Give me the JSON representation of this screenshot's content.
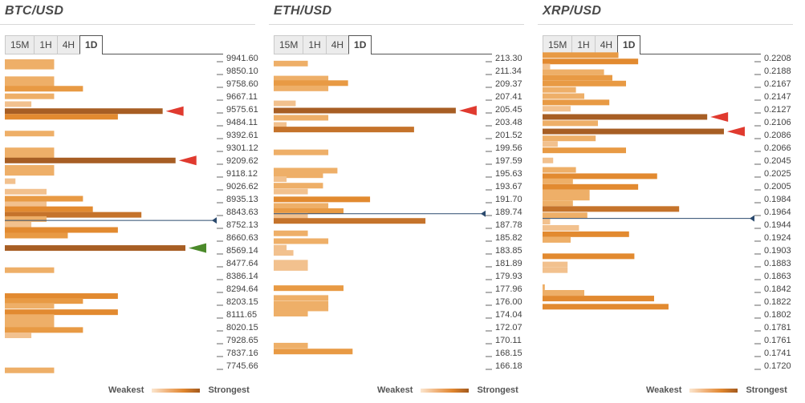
{
  "tabs": [
    "15M",
    "1H",
    "4H",
    "1D"
  ],
  "active_tab": "1D",
  "legend": {
    "weakest": "Weakest",
    "strongest": "Strongest"
  },
  "colors": {
    "level1": "#f8dcbb",
    "level2": "#f2c18e",
    "level3": "#eeaf68",
    "level4": "#e89a44",
    "level5": "#e28a30",
    "level6": "#c5732b",
    "level7": "#a75e24",
    "arrow_red": "#e03a2f",
    "arrow_green": "#4b8a2a",
    "current_price_line": "#2b4a6e"
  },
  "panels": [
    {
      "title": "BTC/USD",
      "chart_data": {
        "type": "bar",
        "orientation": "horizontal",
        "price_levels": [
          "9941.60",
          "9850.10",
          "9758.60",
          "9667.11",
          "9575.61",
          "9484.11",
          "9392.61",
          "9301.12",
          "9209.62",
          "9118.12",
          "9026.62",
          "8935.13",
          "8843.63",
          "8752.13",
          "8660.63",
          "8569.14",
          "8477.64",
          "8386.14",
          "8294.64",
          "8203.15",
          "8111.65",
          "8020.15",
          "7928.65",
          "7837.16",
          "7745.66"
        ],
        "price_range": [
          7745.66,
          9941.6
        ],
        "bar_scale_max": 275,
        "bars": [
          {
            "price": 9910,
            "value": 65,
            "level": 3
          },
          {
            "price": 9878,
            "value": 65,
            "level": 3
          },
          {
            "price": 9788,
            "value": 65,
            "level": 3
          },
          {
            "price": 9756,
            "value": 65,
            "level": 3
          },
          {
            "price": 9720,
            "value": 103,
            "level": 4
          },
          {
            "price": 9666,
            "value": 65,
            "level": 3
          },
          {
            "price": 9610,
            "value": 35,
            "level": 2
          },
          {
            "price": 9560,
            "value": 208,
            "level": 7
          },
          {
            "price": 9520,
            "value": 149,
            "level": 5
          },
          {
            "price": 9400,
            "value": 65,
            "level": 3
          },
          {
            "price": 9280,
            "value": 65,
            "level": 3
          },
          {
            "price": 9245,
            "value": 65,
            "level": 3
          },
          {
            "price": 9208,
            "value": 225,
            "level": 7
          },
          {
            "price": 9155,
            "value": 65,
            "level": 3
          },
          {
            "price": 9120,
            "value": 65,
            "level": 3
          },
          {
            "price": 9060,
            "value": 14,
            "level": 2
          },
          {
            "price": 8985,
            "value": 55,
            "level": 2
          },
          {
            "price": 8935,
            "value": 103,
            "level": 4
          },
          {
            "price": 8895,
            "value": 55,
            "level": 2
          },
          {
            "price": 8860,
            "value": 116,
            "level": 5
          },
          {
            "price": 8820,
            "value": 180,
            "level": 6
          },
          {
            "price": 8790,
            "value": 55,
            "level": 3
          },
          {
            "price": 8752,
            "value": 35,
            "level": 2
          },
          {
            "price": 8712,
            "value": 149,
            "level": 5
          },
          {
            "price": 8672,
            "value": 83,
            "level": 4
          },
          {
            "price": 8583,
            "value": 238,
            "level": 7
          },
          {
            "price": 8425,
            "value": 65,
            "level": 3
          },
          {
            "price": 8240,
            "value": 149,
            "level": 5
          },
          {
            "price": 8205,
            "value": 103,
            "level": 4
          },
          {
            "price": 8170,
            "value": 65,
            "level": 3
          },
          {
            "price": 8125,
            "value": 149,
            "level": 5
          },
          {
            "price": 8090,
            "value": 65,
            "level": 3
          },
          {
            "price": 8055,
            "value": 65,
            "level": 3
          },
          {
            "price": 8020,
            "value": 65,
            "level": 3
          },
          {
            "price": 7998,
            "value": 103,
            "level": 4
          },
          {
            "price": 7960,
            "value": 35,
            "level": 2
          },
          {
            "price": 7710,
            "value": 65,
            "level": 3
          }
        ],
        "current_price": 8780,
        "arrows": [
          {
            "price": 9560,
            "color": "red"
          },
          {
            "price": 9208,
            "color": "red"
          },
          {
            "price": 8583,
            "color": "green"
          }
        ]
      }
    },
    {
      "title": "ETH/USD",
      "chart_data": {
        "type": "bar",
        "orientation": "horizontal",
        "price_levels": [
          "213.30",
          "211.34",
          "209.37",
          "207.41",
          "205.45",
          "203.48",
          "201.52",
          "199.56",
          "197.59",
          "195.63",
          "193.67",
          "191.70",
          "189.74",
          "187.78",
          "185.82",
          "183.85",
          "181.89",
          "179.93",
          "177.96",
          "176.00",
          "174.04",
          "172.07",
          "170.11",
          "168.15",
          "166.18"
        ],
        "price_range": [
          166.18,
          213.3
        ],
        "bar_scale_max": 275,
        "bars": [
          {
            "price": 212.4,
            "value": 45,
            "level": 3
          },
          {
            "price": 210.1,
            "value": 72,
            "level": 3
          },
          {
            "price": 209.4,
            "value": 98,
            "level": 4
          },
          {
            "price": 208.6,
            "value": 72,
            "level": 3
          },
          {
            "price": 206.3,
            "value": 29,
            "level": 2
          },
          {
            "price": 205.2,
            "value": 240,
            "level": 7
          },
          {
            "price": 204.1,
            "value": 72,
            "level": 3
          },
          {
            "price": 203.0,
            "value": 17,
            "level": 2
          },
          {
            "price": 202.3,
            "value": 185,
            "level": 6
          },
          {
            "price": 198.8,
            "value": 72,
            "level": 3
          },
          {
            "price": 196.0,
            "value": 84,
            "level": 3
          },
          {
            "price": 195.3,
            "value": 65,
            "level": 3
          },
          {
            "price": 194.7,
            "value": 17,
            "level": 2
          },
          {
            "price": 193.7,
            "value": 65,
            "level": 3
          },
          {
            "price": 192.8,
            "value": 45,
            "level": 2
          },
          {
            "price": 191.6,
            "value": 127,
            "level": 5
          },
          {
            "price": 190.6,
            "value": 72,
            "level": 3
          },
          {
            "price": 189.8,
            "value": 92,
            "level": 4
          },
          {
            "price": 189.1,
            "value": 45,
            "level": 2
          },
          {
            "price": 188.3,
            "value": 200,
            "level": 6
          },
          {
            "price": 186.4,
            "value": 45,
            "level": 3
          },
          {
            "price": 185.2,
            "value": 72,
            "level": 3
          },
          {
            "price": 184.2,
            "value": 17,
            "level": 2
          },
          {
            "price": 183.4,
            "value": 26,
            "level": 2
          },
          {
            "price": 181.9,
            "value": 45,
            "level": 2
          },
          {
            "price": 181.1,
            "value": 45,
            "level": 2
          },
          {
            "price": 178.0,
            "value": 92,
            "level": 4
          },
          {
            "price": 176.5,
            "value": 72,
            "level": 3
          },
          {
            "price": 175.6,
            "value": 72,
            "level": 3
          },
          {
            "price": 174.9,
            "value": 72,
            "level": 3
          },
          {
            "price": 174.1,
            "value": 45,
            "level": 3
          },
          {
            "price": 169.2,
            "value": 45,
            "level": 3
          },
          {
            "price": 168.3,
            "value": 104,
            "level": 4
          }
        ],
        "current_price": 189.4,
        "arrows": [
          {
            "price": 205.2,
            "color": "red"
          }
        ]
      }
    },
    {
      "title": "XRP/USD",
      "chart_data": {
        "type": "bar",
        "orientation": "horizontal",
        "price_levels": [
          "0.2208",
          "0.2188",
          "0.2167",
          "0.2147",
          "0.2127",
          "0.2106",
          "0.2086",
          "0.2066",
          "0.2045",
          "0.2025",
          "0.2005",
          "0.1984",
          "0.1964",
          "0.1944",
          "0.1924",
          "0.1903",
          "0.1883",
          "0.1863",
          "0.1842",
          "0.1822",
          "0.1802",
          "0.1781",
          "0.1761",
          "0.1741",
          "0.1720"
        ],
        "price_range": [
          0.172,
          0.2208
        ],
        "bar_scale_max": 275,
        "bars": [
          {
            "price": 0.2212,
            "value": 100,
            "level": 4
          },
          {
            "price": 0.2202,
            "value": 126,
            "level": 5
          },
          {
            "price": 0.2194,
            "value": 10,
            "level": 2
          },
          {
            "price": 0.2185,
            "value": 81,
            "level": 3
          },
          {
            "price": 0.2176,
            "value": 92,
            "level": 4
          },
          {
            "price": 0.2167,
            "value": 110,
            "level": 4
          },
          {
            "price": 0.2157,
            "value": 44,
            "level": 3
          },
          {
            "price": 0.2147,
            "value": 55,
            "level": 3
          },
          {
            "price": 0.2137,
            "value": 88,
            "level": 4
          },
          {
            "price": 0.2127,
            "value": 37,
            "level": 2
          },
          {
            "price": 0.2114,
            "value": 217,
            "level": 7
          },
          {
            "price": 0.2104,
            "value": 73,
            "level": 3
          },
          {
            "price": 0.2091,
            "value": 239,
            "level": 7
          },
          {
            "price": 0.208,
            "value": 70,
            "level": 3
          },
          {
            "price": 0.2071,
            "value": 20,
            "level": 2
          },
          {
            "price": 0.2061,
            "value": 110,
            "level": 4
          },
          {
            "price": 0.2045,
            "value": 14,
            "level": 2
          },
          {
            "price": 0.203,
            "value": 44,
            "level": 3
          },
          {
            "price": 0.202,
            "value": 151,
            "level": 5
          },
          {
            "price": 0.2012,
            "value": 40,
            "level": 3
          },
          {
            "price": 0.2003,
            "value": 126,
            "level": 5
          },
          {
            "price": 0.1994,
            "value": 62,
            "level": 3
          },
          {
            "price": 0.1986,
            "value": 62,
            "level": 3
          },
          {
            "price": 0.1977,
            "value": 40,
            "level": 3
          },
          {
            "price": 0.1968,
            "value": 180,
            "level": 6
          },
          {
            "price": 0.1958,
            "value": 59,
            "level": 3
          },
          {
            "price": 0.1948,
            "value": 10,
            "level": 2
          },
          {
            "price": 0.1938,
            "value": 48,
            "level": 2
          },
          {
            "price": 0.1928,
            "value": 114,
            "level": 5
          },
          {
            "price": 0.1919,
            "value": 37,
            "level": 3
          },
          {
            "price": 0.1893,
            "value": 121,
            "level": 5
          },
          {
            "price": 0.188,
            "value": 33,
            "level": 2
          },
          {
            "price": 0.1871,
            "value": 33,
            "level": 2
          },
          {
            "price": 0.1844,
            "value": 3,
            "level": 3
          },
          {
            "price": 0.1835,
            "value": 55,
            "level": 3
          },
          {
            "price": 0.1826,
            "value": 147,
            "level": 5
          },
          {
            "price": 0.1813,
            "value": 166,
            "level": 5
          }
        ],
        "current_price": 0.1953,
        "arrows": [
          {
            "price": 0.2114,
            "color": "red"
          },
          {
            "price": 0.2091,
            "color": "red"
          }
        ]
      }
    }
  ]
}
